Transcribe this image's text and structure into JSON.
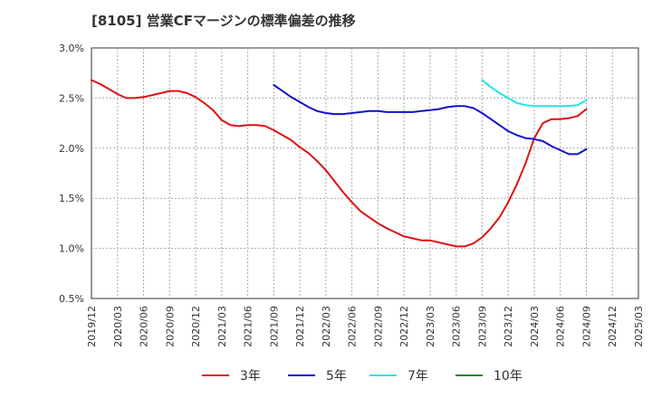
{
  "chart_data": {
    "type": "line",
    "title": "[8105]  営業CFマージンの標準偏差の推移",
    "xlabel": "",
    "ylabel": "",
    "ylim": [
      0.5,
      3.0
    ],
    "x_range": [
      "2019/12",
      "2025/03"
    ],
    "grid": "dashed",
    "legend_position": "bottom",
    "y_ticks": [
      "0.5%",
      "1.0%",
      "1.5%",
      "2.0%",
      "2.5%",
      "3.0%"
    ],
    "x_ticks": [
      "2019/12",
      "2020/03",
      "2020/06",
      "2020/09",
      "2020/12",
      "2021/03",
      "2021/06",
      "2021/09",
      "2021/12",
      "2022/03",
      "2022/06",
      "2022/09",
      "2022/12",
      "2023/03",
      "2023/06",
      "2023/09",
      "2023/12",
      "2024/03",
      "2024/06",
      "2024/09",
      "2024/12",
      "2025/03"
    ],
    "series": [
      {
        "name": "3年",
        "color": "#dd1111",
        "x": [
          "2019/12",
          "2020/01",
          "2020/02",
          "2020/03",
          "2020/04",
          "2020/05",
          "2020/06",
          "2020/07",
          "2020/08",
          "2020/09",
          "2020/10",
          "2020/11",
          "2020/12",
          "2021/01",
          "2021/02",
          "2021/03",
          "2021/04",
          "2021/05",
          "2021/06",
          "2021/07",
          "2021/08",
          "2021/09",
          "2021/10",
          "2021/11",
          "2021/12",
          "2022/01",
          "2022/02",
          "2022/03",
          "2022/04",
          "2022/05",
          "2022/06",
          "2022/07",
          "2022/08",
          "2022/09",
          "2022/10",
          "2022/11",
          "2022/12",
          "2023/01",
          "2023/02",
          "2023/03",
          "2023/04",
          "2023/05",
          "2023/06",
          "2023/07",
          "2023/08",
          "2023/09",
          "2023/10",
          "2023/11",
          "2023/12",
          "2024/01",
          "2024/02",
          "2024/03",
          "2024/04",
          "2024/05",
          "2024/06",
          "2024/07",
          "2024/08",
          "2024/09"
        ],
        "values": [
          2.68,
          2.64,
          2.59,
          2.54,
          2.5,
          2.5,
          2.51,
          2.53,
          2.55,
          2.57,
          2.57,
          2.55,
          2.51,
          2.45,
          2.38,
          2.28,
          2.23,
          2.22,
          2.23,
          2.23,
          2.22,
          2.18,
          2.13,
          2.08,
          2.01,
          1.95,
          1.87,
          1.78,
          1.67,
          1.56,
          1.46,
          1.37,
          1.31,
          1.25,
          1.2,
          1.16,
          1.12,
          1.1,
          1.08,
          1.08,
          1.06,
          1.04,
          1.02,
          1.02,
          1.05,
          1.11,
          1.2,
          1.31,
          1.46,
          1.64,
          1.85,
          2.1,
          2.25,
          2.29,
          2.29,
          2.3,
          2.32,
          2.39
        ]
      },
      {
        "name": "5年",
        "color": "#1111cc",
        "x": [
          "2021/09",
          "2021/10",
          "2021/11",
          "2021/12",
          "2022/01",
          "2022/02",
          "2022/03",
          "2022/04",
          "2022/05",
          "2022/06",
          "2022/07",
          "2022/08",
          "2022/09",
          "2022/10",
          "2022/11",
          "2022/12",
          "2023/01",
          "2023/02",
          "2023/03",
          "2023/04",
          "2023/05",
          "2023/06",
          "2023/07",
          "2023/08",
          "2023/09",
          "2023/10",
          "2023/11",
          "2023/12",
          "2024/01",
          "2024/02",
          "2024/03",
          "2024/04",
          "2024/05",
          "2024/06",
          "2024/07",
          "2024/08",
          "2024/09"
        ],
        "values": [
          2.63,
          2.57,
          2.51,
          2.46,
          2.41,
          2.37,
          2.35,
          2.34,
          2.34,
          2.35,
          2.36,
          2.37,
          2.37,
          2.36,
          2.36,
          2.36,
          2.36,
          2.37,
          2.38,
          2.39,
          2.41,
          2.42,
          2.42,
          2.4,
          2.35,
          2.29,
          2.23,
          2.17,
          2.13,
          2.1,
          2.09,
          2.07,
          2.02,
          1.98,
          1.94,
          1.94,
          1.99
        ]
      },
      {
        "name": "7年",
        "color": "#22e5e5",
        "x": [
          "2023/09",
          "2023/10",
          "2023/11",
          "2023/12",
          "2024/01",
          "2024/02",
          "2024/03",
          "2024/04",
          "2024/05",
          "2024/06",
          "2024/07",
          "2024/08",
          "2024/09"
        ],
        "values": [
          2.68,
          2.61,
          2.55,
          2.5,
          2.45,
          2.43,
          2.42,
          2.42,
          2.42,
          2.42,
          2.42,
          2.43,
          2.48
        ]
      },
      {
        "name": "10年",
        "color": "#228822",
        "x": [],
        "values": []
      }
    ]
  }
}
